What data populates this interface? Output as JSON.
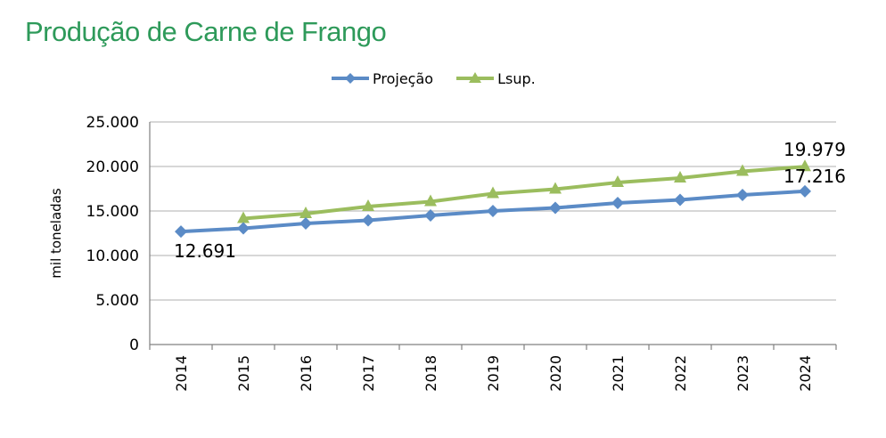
{
  "title": "Produção de Carne de Frango",
  "colors": {
    "title": "#2e9a5a",
    "projecao": "#5b8bc6",
    "lsup": "#9bbd5e",
    "grid": "#bfbfbf"
  },
  "legend": [
    {
      "label": "Projeção",
      "marker": "diamond",
      "color": "#5b8bc6"
    },
    {
      "label": "Lsup.",
      "marker": "triangle",
      "color": "#9bbd5e"
    }
  ],
  "chart_data": {
    "type": "line",
    "title": "Produção de Carne de Frango",
    "ylabel": "mil toneladas",
    "xlabel": "",
    "categories": [
      "2014",
      "2015",
      "2016",
      "2017",
      "2018",
      "2019",
      "2020",
      "2021",
      "2022",
      "2023",
      "2024"
    ],
    "ylim": [
      0,
      25000
    ],
    "yticks": [
      0,
      5000,
      10000,
      15000,
      20000,
      25000
    ],
    "ytick_labels": [
      "0",
      "5.000",
      "10.000",
      "15.000",
      "20.000",
      "25.000"
    ],
    "grid": true,
    "legend_position": "top",
    "series": [
      {
        "name": "Projeção",
        "marker": "diamond",
        "color": "#5b8bc6",
        "values": [
          12691,
          13050,
          13600,
          13950,
          14500,
          15000,
          15350,
          15900,
          16250,
          16800,
          17216
        ]
      },
      {
        "name": "Lsup.",
        "marker": "triangle",
        "color": "#9bbd5e",
        "values": [
          null,
          14150,
          14700,
          15500,
          16050,
          16950,
          17450,
          18200,
          18700,
          19450,
          19979
        ]
      }
    ],
    "annotations": [
      {
        "text": "12.691",
        "series": 0,
        "index": 0
      },
      {
        "text": "19.979",
        "series": 1,
        "index": 10
      },
      {
        "text": "17.216",
        "series": 0,
        "index": 10
      }
    ]
  }
}
